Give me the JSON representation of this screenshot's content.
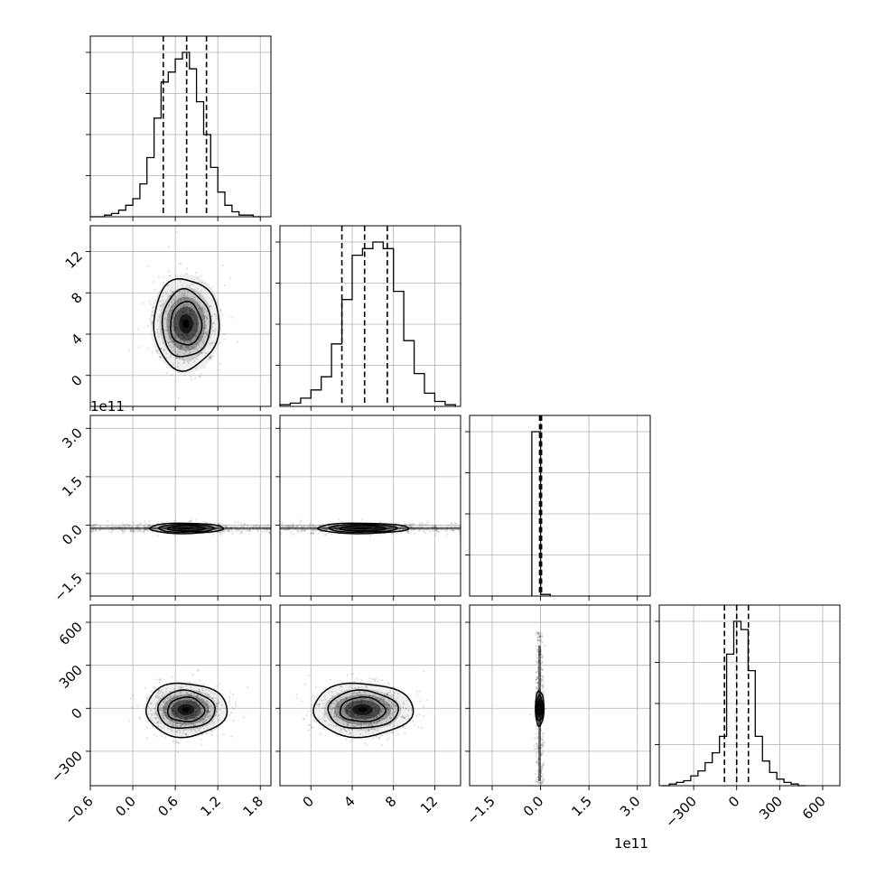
{
  "chart_data": {
    "type": "corner",
    "grid": true,
    "xlabel": "",
    "ylabel": "",
    "parameters": [
      {
        "range": [
          -0.6,
          1.95
        ],
        "ticks": [
          -0.6,
          0.0,
          0.6,
          1.2,
          1.8
        ],
        "tick_labels": [
          "−0.6",
          "0.0",
          "0.6",
          "1.2",
          "1.8"
        ],
        "quantiles": [
          0.43,
          0.76,
          1.04
        ],
        "hist": {
          "edges": [
            -0.6,
            -0.5,
            -0.4,
            -0.3,
            -0.2,
            -0.1,
            0.0,
            0.1,
            0.2,
            0.3,
            0.4,
            0.5,
            0.6,
            0.7,
            0.8,
            0.9,
            1.0,
            1.1,
            1.2,
            1.3,
            1.4,
            1.5,
            1.6,
            1.7,
            1.8
          ],
          "counts": [
            0,
            0,
            1,
            2,
            4,
            7,
            11,
            20,
            36,
            60,
            82,
            88,
            96,
            100,
            90,
            70,
            50,
            30,
            15,
            7,
            3,
            1,
            1,
            0
          ]
        }
      },
      {
        "range": [
          -3.0,
          14.5
        ],
        "ticks": [
          0,
          4,
          8,
          12
        ],
        "tick_labels": [
          "0",
          "4",
          "8",
          "12"
        ],
        "quantiles": [
          3.0,
          5.2,
          7.4
        ],
        "hist": {
          "edges": [
            -3.0,
            -2.0,
            -1.0,
            0.0,
            1.0,
            2.0,
            3.0,
            4.0,
            5.0,
            6.0,
            7.0,
            8.0,
            9.0,
            10.0,
            11.0,
            12.0,
            13.0,
            14.0
          ],
          "counts": [
            1,
            2,
            5,
            10,
            18,
            38,
            65,
            92,
            96,
            100,
            96,
            70,
            40,
            20,
            8,
            3,
            1
          ]
        }
      },
      {
        "range": [
          -2.2,
          3.4
        ],
        "ticks": [
          -1.5,
          0.0,
          1.5,
          3.0
        ],
        "tick_labels": [
          "−1.5",
          "0.0",
          "1.5",
          "3.0"
        ],
        "offset_text": "1e11",
        "quantiles": [
          -0.03,
          0.0,
          0.03
        ],
        "hist": {
          "edges": [
            -0.27,
            0.0,
            0.3
          ],
          "counts": [
            100,
            1
          ]
        }
      },
      {
        "range": [
          -540,
          720
        ],
        "ticks": [
          -300,
          0,
          300,
          600
        ],
        "tick_labels": [
          "−300",
          "0",
          "300",
          "600"
        ],
        "quantiles": [
          -85,
          0,
          82
        ],
        "hist": {
          "edges": [
            -520,
            -470,
            -420,
            -370,
            -320,
            -270,
            -220,
            -170,
            -120,
            -70,
            -20,
            30,
            80,
            130,
            180,
            230,
            280,
            330,
            380,
            430,
            480
          ],
          "counts": [
            0,
            1,
            2,
            3,
            6,
            9,
            14,
            20,
            30,
            80,
            100,
            95,
            70,
            30,
            15,
            8,
            4,
            2,
            1,
            0
          ]
        }
      }
    ],
    "pairs": [
      {
        "x": 0,
        "y": 1,
        "center": [
          0.75,
          5.0
        ],
        "sigma": [
          0.22,
          2.1
        ],
        "levels": [
          1.0,
          1.55,
          2.1
        ]
      },
      {
        "x": 0,
        "y": 2,
        "center": [
          0.75,
          -0.1
        ],
        "sigma": [
          0.26,
          0.08
        ],
        "levels": [
          1.0,
          1.5,
          2.0
        ]
      },
      {
        "x": 1,
        "y": 2,
        "center": [
          5.0,
          -0.1
        ],
        "sigma": [
          2.2,
          0.08
        ],
        "levels": [
          1.0,
          1.5,
          2.0
        ]
      },
      {
        "x": 0,
        "y": 3,
        "center": [
          0.75,
          -10
        ],
        "sigma": [
          0.26,
          85
        ],
        "levels": [
          1.0,
          1.55,
          2.2
        ]
      },
      {
        "x": 1,
        "y": 3,
        "center": [
          5.0,
          -10
        ],
        "sigma": [
          2.2,
          85
        ],
        "levels": [
          1.0,
          1.55,
          2.2
        ]
      },
      {
        "x": 2,
        "y": 3,
        "center": [
          -0.03,
          0
        ],
        "sigma": [
          0.06,
          55
        ],
        "levels": [
          1.0,
          1.6,
          2.2
        ]
      }
    ]
  }
}
